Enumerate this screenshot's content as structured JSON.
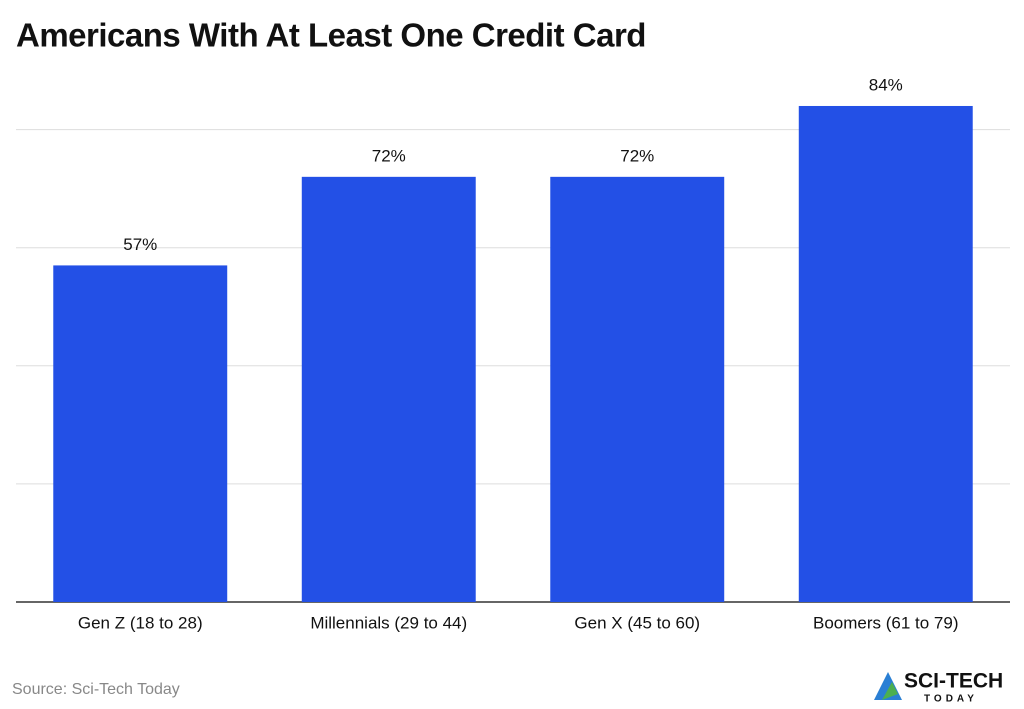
{
  "chart_data": {
    "type": "bar",
    "title": "Americans With At Least One Credit Card",
    "categories": [
      "Gen Z (18 to 28)",
      "Millennials (29 to 44)",
      "Gen X (45 to 60)",
      "Boomers (61 to 79)"
    ],
    "values": [
      57,
      72,
      72,
      84
    ],
    "value_labels": [
      "57%",
      "72%",
      "72%",
      "84%"
    ],
    "color": "#2350e6",
    "ylim": [
      0,
      100
    ],
    "yticks": [
      0,
      20,
      40,
      60,
      80
    ],
    "grid": true,
    "source": "Source: Sci-Tech Today",
    "logo": {
      "name": "SCI-TECH",
      "tagline": "TODAY"
    }
  }
}
